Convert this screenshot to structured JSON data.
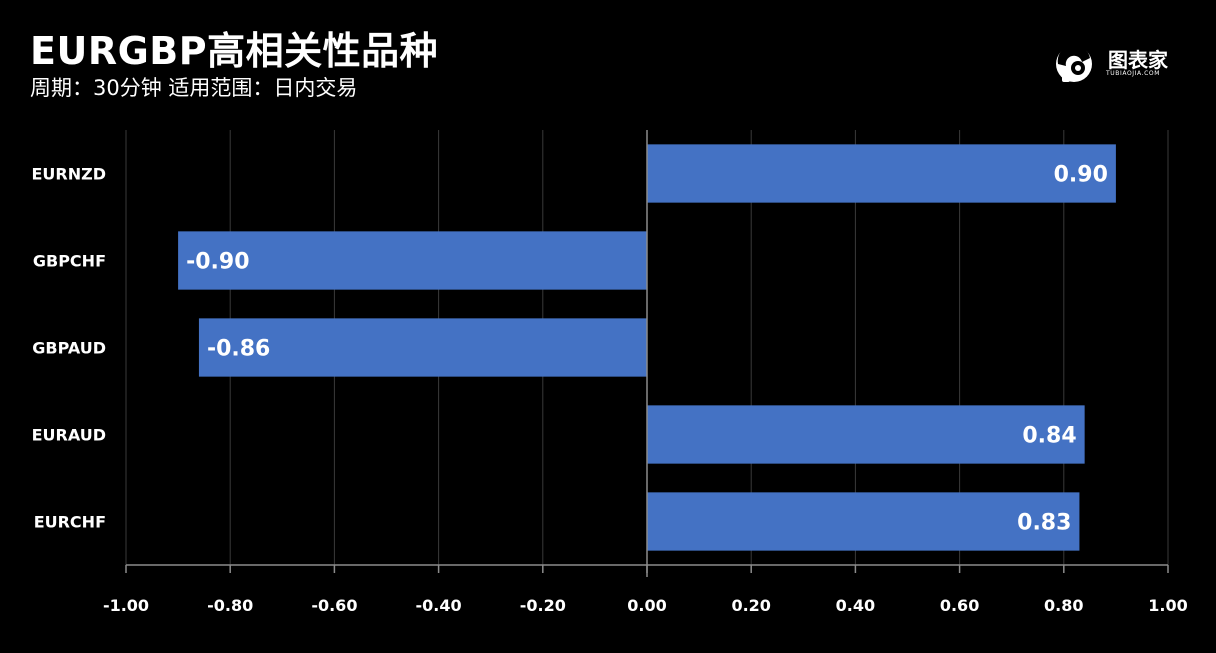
{
  "header": {
    "title": "EURGBP高相关性品种",
    "subtitle": "周期：30分钟  适用范围：日内交易"
  },
  "logo": {
    "text": "图表家",
    "subtext": "TUBIAOJIA.COM",
    "icon": "mascot-head-icon"
  },
  "colors": {
    "background": "#000000",
    "bar": "#4472C4",
    "grid": "#3a3a3a",
    "axis": "#8c8c8c",
    "text": "#ffffff"
  },
  "chart_data": {
    "type": "bar",
    "orientation": "horizontal",
    "categories": [
      "EURNZD",
      "GBPCHF",
      "GBPAUD",
      "EURAUD",
      "EURCHF"
    ],
    "values": [
      0.9,
      -0.9,
      -0.86,
      0.84,
      0.83
    ],
    "data_labels": [
      "0.90",
      "-0.90",
      "-0.86",
      "0.84",
      "0.83"
    ],
    "xlim": [
      -1.0,
      1.0
    ],
    "xticks": [
      -1.0,
      -0.8,
      -0.6,
      -0.4,
      -0.2,
      0.0,
      0.2,
      0.4,
      0.6,
      0.8,
      1.0
    ],
    "xtick_labels": [
      "-1.00",
      "-0.80",
      "-0.60",
      "-0.40",
      "-0.20",
      "0.00",
      "0.20",
      "0.40",
      "0.60",
      "0.80",
      "1.00"
    ],
    "grid": true,
    "legend": false
  }
}
